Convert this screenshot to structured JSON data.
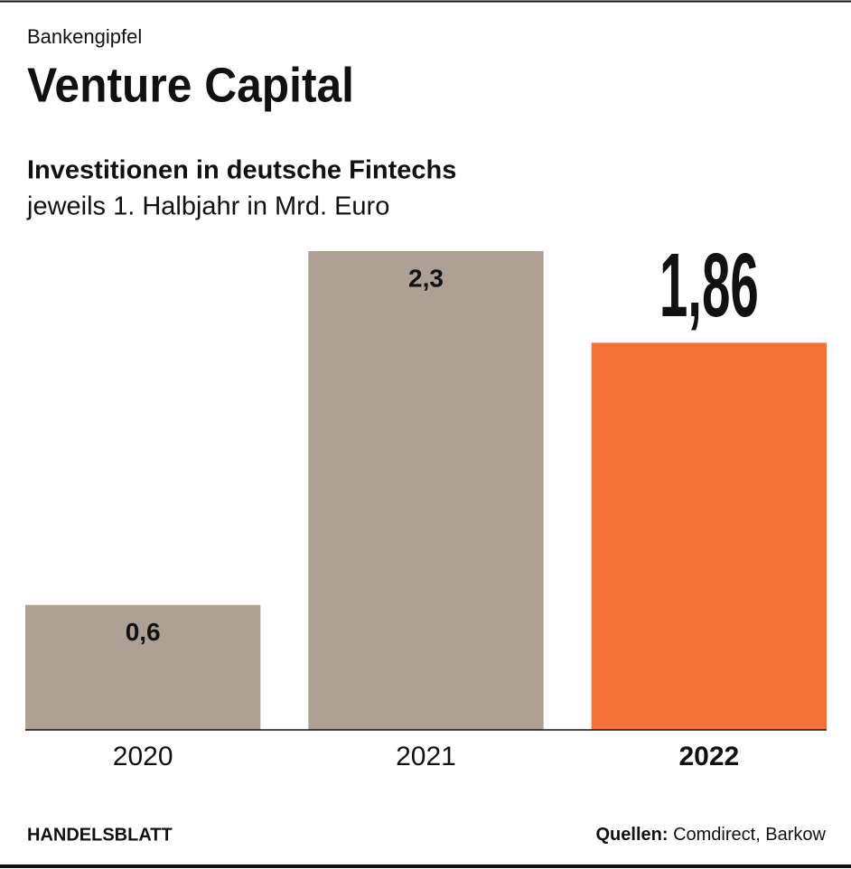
{
  "chart_data": {
    "type": "bar",
    "kicker": "Bankengipfel",
    "title": "Venture Capital",
    "subtitle": "Investitionen in deutsche Fintechs",
    "unit_note": "jeweils 1. Halbjahr in Mrd. Euro",
    "categories": [
      "2020",
      "2021",
      "2022"
    ],
    "values": [
      0.6,
      2.3,
      1.86
    ],
    "value_labels": [
      "0,6",
      "2,3",
      "1,86"
    ],
    "colors": [
      "#ada195",
      "#ada195",
      "#f4713a"
    ],
    "highlight": "2022",
    "brand": "HANDELSBLATT",
    "source_label": "Quellen:",
    "source": "Comdirect, Barkow"
  }
}
